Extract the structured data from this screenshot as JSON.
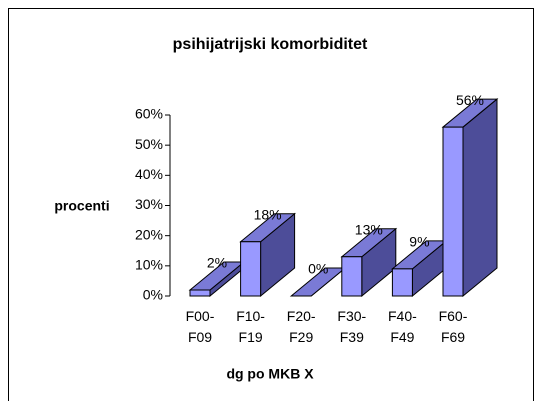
{
  "chart_data": {
    "type": "bar3d",
    "title": "psihijatrijski komorbiditet",
    "ylabel": "procenti",
    "xlabel": "dg po MKB X",
    "categories": [
      "F00- F09",
      "F10- F19",
      "F20- F29",
      "F30- F39",
      "F40- F49",
      "F60- F69"
    ],
    "values": [
      2,
      18,
      0,
      13,
      9,
      56
    ],
    "value_labels": [
      "2%",
      "18%",
      "0%",
      "13%",
      "9%",
      "56%"
    ],
    "color": "#9999ff",
    "ylim": [
      0,
      60
    ],
    "yticks": [
      {
        "value": 0,
        "label": "0%"
      },
      {
        "value": 10,
        "label": "10%"
      },
      {
        "value": 20,
        "label": "20%"
      },
      {
        "value": 30,
        "label": "30%"
      },
      {
        "value": 40,
        "label": "40%"
      },
      {
        "value": 50,
        "label": "50%"
      },
      {
        "value": 60,
        "label": "60%"
      }
    ]
  }
}
